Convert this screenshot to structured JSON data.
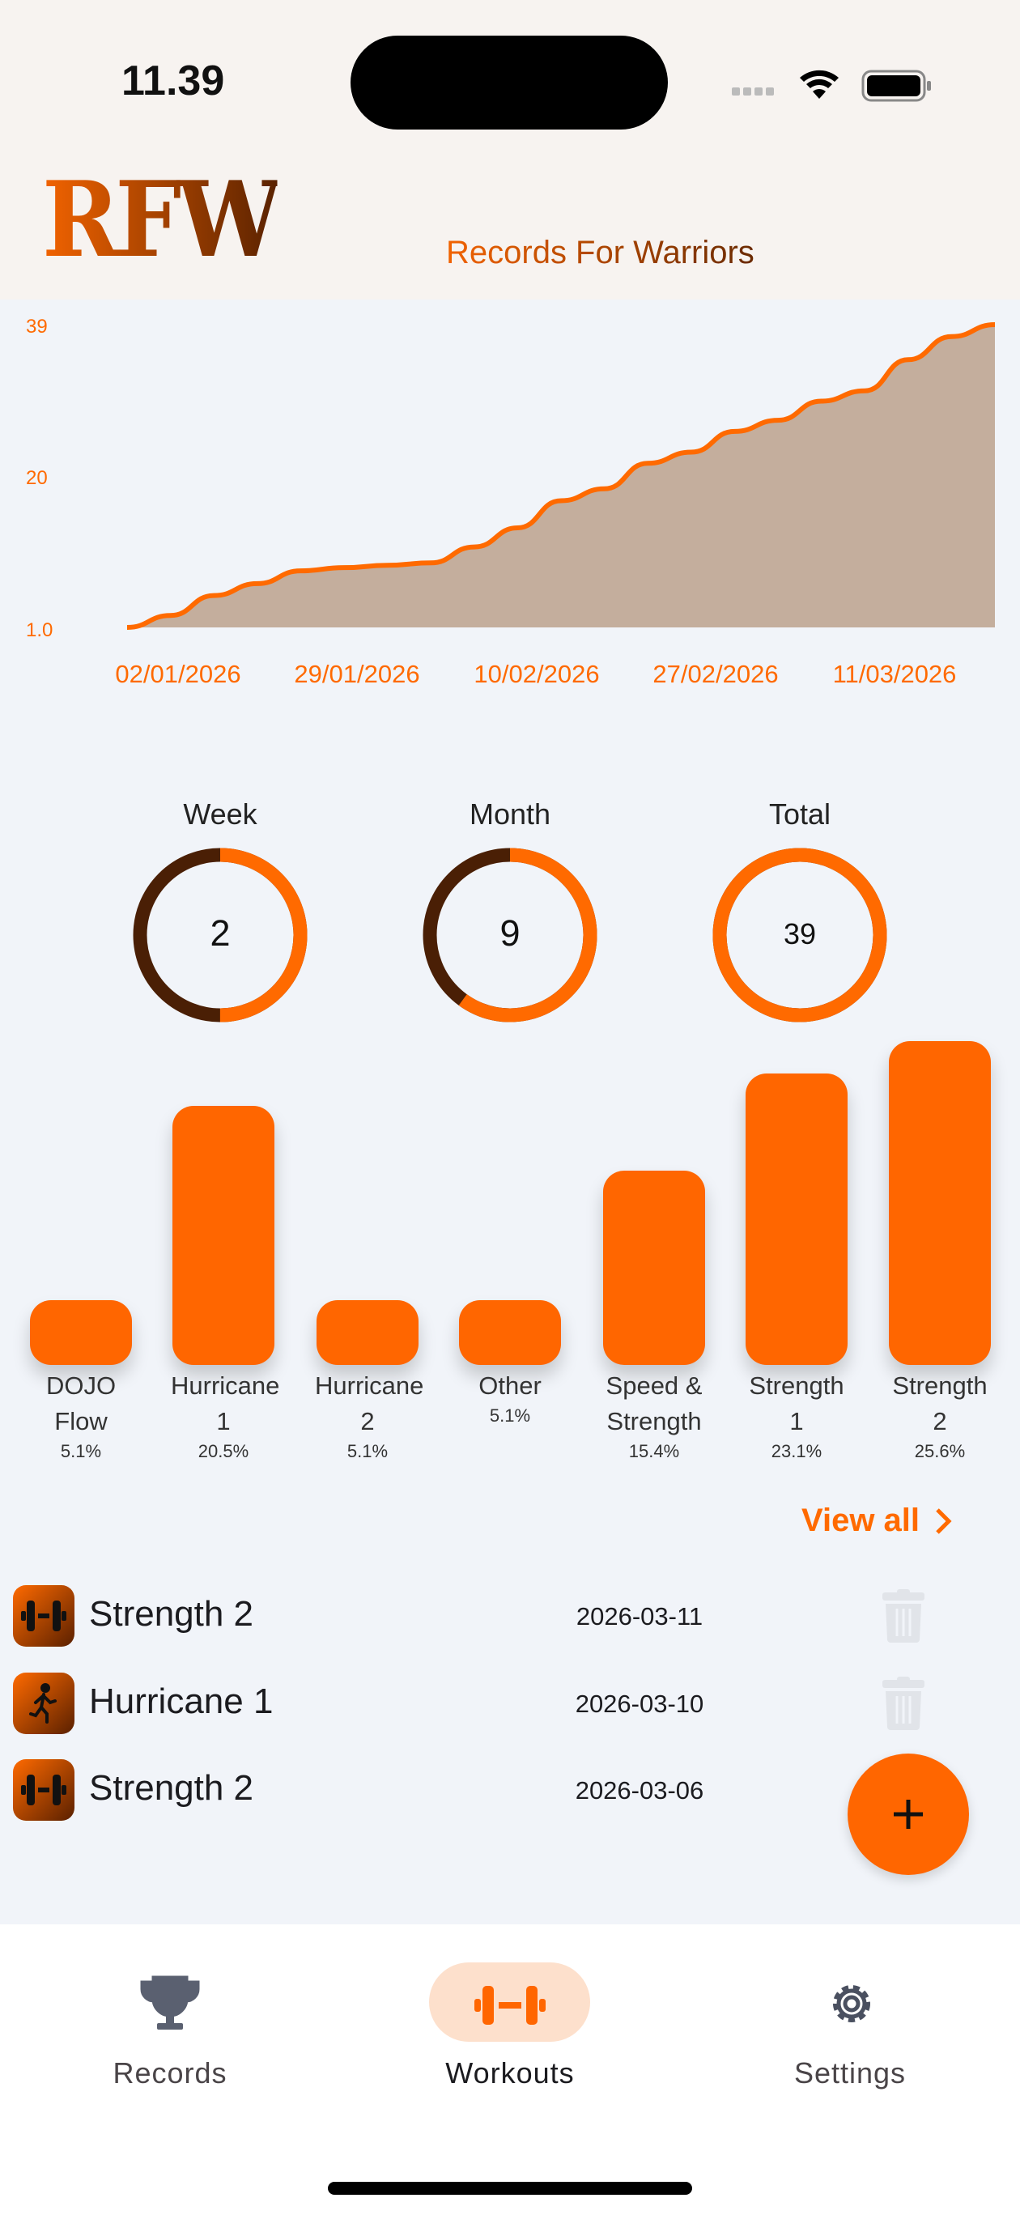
{
  "status_bar": {
    "time": "11.39",
    "icons": [
      "cellular-icon",
      "wifi-icon",
      "battery-icon"
    ]
  },
  "header": {
    "logo": "RFW",
    "subtitle": "Records For Warriors"
  },
  "chart_data": {
    "type": "area",
    "y_ticks": [
      "39",
      "20",
      "1.0"
    ],
    "ylim": [
      1,
      39
    ],
    "x_tick_labels": [
      "02/01/2026",
      "29/01/2026",
      "10/02/2026",
      "27/02/2026",
      "11/03/2026"
    ],
    "values": [
      1,
      2.5,
      5,
      6.5,
      8.1,
      8.5,
      8.8,
      9.1,
      11.1,
      13.5,
      16.9,
      18.4,
      21.6,
      23.0,
      25.6,
      27.0,
      29.4,
      30.7,
      34.6,
      37.5,
      39
    ],
    "line_color": "#ff6a00",
    "fill_color": "#c4ae9d",
    "grid": false
  },
  "rings": [
    {
      "label": "Week",
      "value": "2",
      "fraction": 0.5
    },
    {
      "label": "Month",
      "value": "9",
      "fraction": 0.6
    },
    {
      "label": "Total",
      "value": "39",
      "fraction": 1.0
    }
  ],
  "ring_colors": {
    "progress": "#ff6a00",
    "track": "#4a1f05"
  },
  "categories": [
    {
      "name": "DOJO Flow",
      "pct": "5.1%",
      "count": 2
    },
    {
      "name": "Hurricane 1",
      "pct": "20.5%",
      "count": 8
    },
    {
      "name": "Hurricane 2",
      "pct": "5.1%",
      "count": 2
    },
    {
      "name": "Other",
      "pct": "5.1%",
      "count": 2
    },
    {
      "name": "Speed & Strength",
      "pct": "15.4%",
      "count": 6
    },
    {
      "name": "Strength 1",
      "pct": "23.1%",
      "count": 9
    },
    {
      "name": "Strength 2",
      "pct": "25.6%",
      "count": 10
    }
  ],
  "view_all": "View all",
  "workouts": [
    {
      "name": "Strength 2",
      "date": "2026-03-11",
      "icon": "dumbbell-icon",
      "deletable": true
    },
    {
      "name": "Hurricane 1",
      "date": "2026-03-10",
      "icon": "running-icon",
      "deletable": true
    },
    {
      "name": "Strength 2",
      "date": "2026-03-06",
      "icon": "dumbbell-icon",
      "deletable": false
    }
  ],
  "fab": {
    "label": "+"
  },
  "nav": {
    "items": [
      {
        "label": "Records",
        "icon": "trophy-icon"
      },
      {
        "label": "Workouts",
        "icon": "dumbbell-icon",
        "active": true
      },
      {
        "label": "Settings",
        "icon": "gear-icon"
      }
    ]
  },
  "accent": "#ff6600"
}
